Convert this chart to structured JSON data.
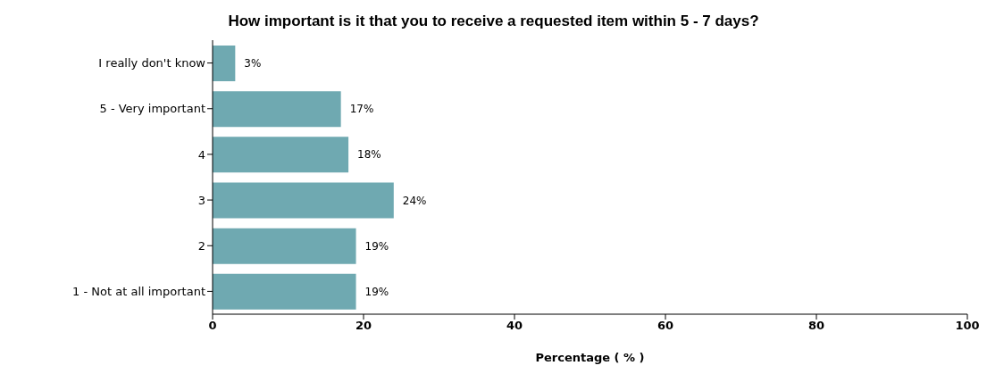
{
  "chart_data": {
    "type": "bar",
    "orientation": "horizontal",
    "title": "How important is it that you to receive a requested item within 5 - 7 days?",
    "xlabel": "Percentage ( % )",
    "categories": [
      "I really don't know",
      "5 - Very important",
      "4",
      "3",
      "2",
      "1 - Not at all important"
    ],
    "values": [
      3,
      17,
      18,
      24,
      19,
      19
    ],
    "value_labels": [
      "3%",
      "17%",
      "18%",
      "24%",
      "19%",
      "19%"
    ],
    "color": "#6fa9b1",
    "xlim": [
      0,
      100
    ],
    "xticks": [
      0,
      20,
      40,
      60,
      80,
      100
    ],
    "grid": false
  }
}
